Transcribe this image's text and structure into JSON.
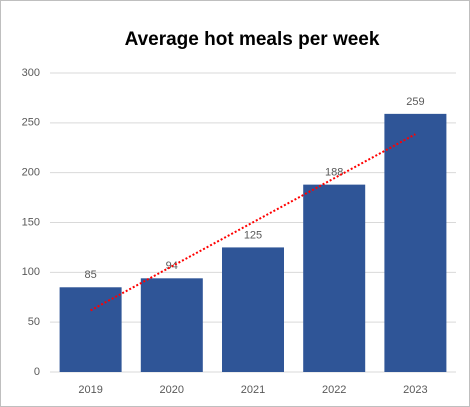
{
  "chart_data": {
    "type": "bar",
    "title": "Average hot meals per week",
    "categories": [
      "2019",
      "2020",
      "2021",
      "2022",
      "2023"
    ],
    "values": [
      85,
      94,
      125,
      188,
      259
    ],
    "color": "#2f5597",
    "ylim": [
      0,
      300
    ],
    "yticks": [
      0,
      50,
      100,
      150,
      200,
      250,
      300
    ],
    "grid": true,
    "trendline": {
      "type": "linear",
      "color": "#ff0000"
    }
  }
}
